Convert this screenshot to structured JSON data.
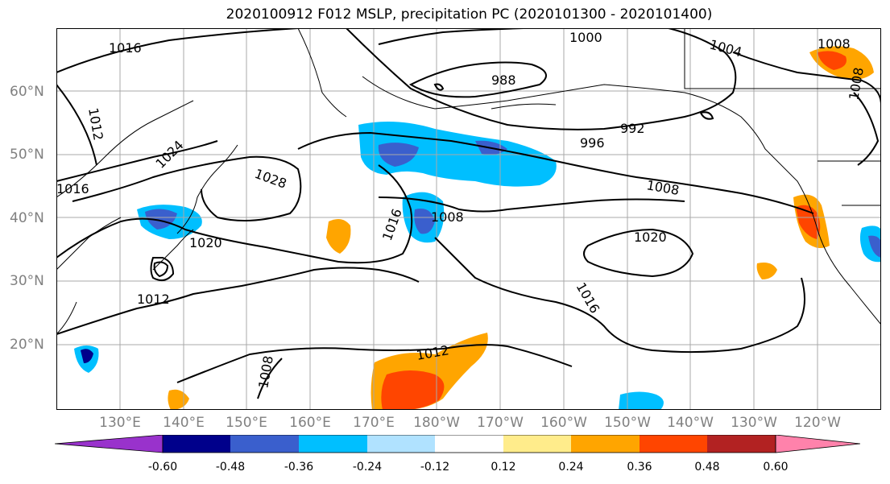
{
  "title": "2020100912 F012 MSLP, precipitation PC (2020101300 - 2020101400)",
  "lat_labels": [
    "60°N",
    "50°N",
    "40°N",
    "30°N",
    "20°N"
  ],
  "lon_labels": [
    "130°E",
    "140°E",
    "150°E",
    "160°E",
    "170°E",
    "180°W",
    "170°W",
    "160°W",
    "150°W",
    "140°W",
    "130°W",
    "120°W"
  ],
  "isobar_labels": [
    "1016",
    "1012",
    "1024",
    "1016",
    "1028",
    "1020",
    "1012",
    "1000",
    "988",
    "992",
    "996",
    "1008",
    "1008",
    "1016",
    "1020",
    "1016",
    "1012",
    "1008",
    "1004",
    "1008",
    "1008"
  ],
  "colorbar": {
    "ticks": [
      "-0.60",
      "-0.48",
      "-0.36",
      "-0.24",
      "-0.12",
      "0.12",
      "0.24",
      "0.36",
      "0.48",
      "0.60"
    ],
    "colors": [
      "#9932cc",
      "#00008b",
      "#3a5fcd",
      "#00bfff",
      "#b0e2ff",
      "#ffffff",
      "#ffec8b",
      "#ffa500",
      "#ff4500",
      "#b22222",
      "#ff82ab"
    ]
  }
}
